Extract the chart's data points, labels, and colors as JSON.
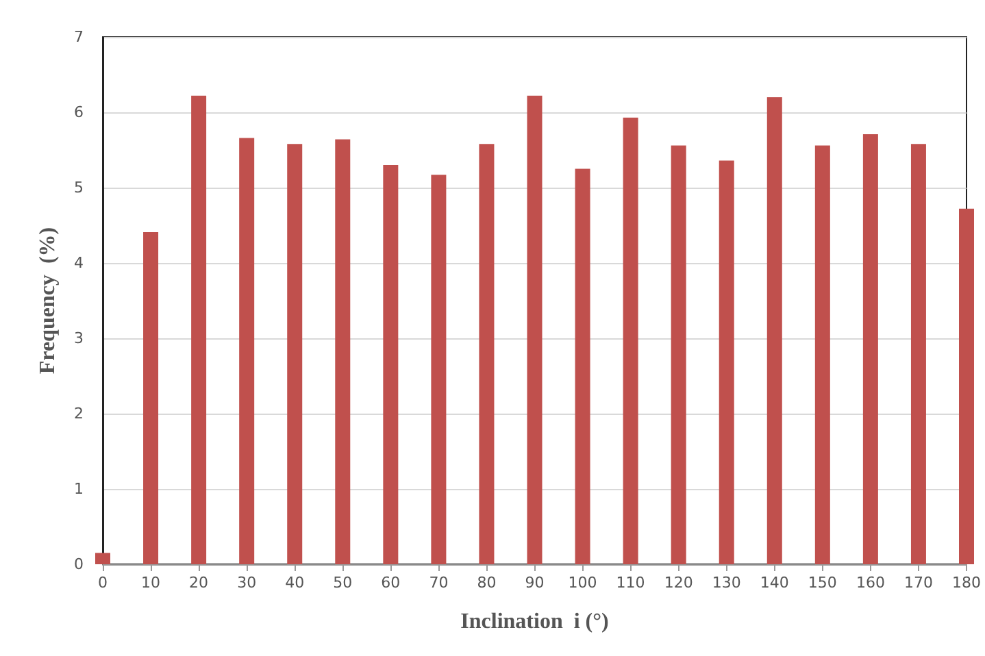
{
  "chart_data": {
    "type": "bar",
    "xlabel": "Inclination  i (°)",
    "ylabel": "Frequency  (%)",
    "x": [
      0,
      10,
      20,
      30,
      40,
      50,
      60,
      70,
      80,
      90,
      100,
      110,
      120,
      130,
      140,
      150,
      160,
      170,
      180
    ],
    "series": [
      {
        "color": "#c0504d",
        "values": [
          0.15,
          4.41,
          6.22,
          5.66,
          5.58,
          5.64,
          5.3,
          5.17,
          5.58,
          6.22,
          5.25,
          5.93,
          5.56,
          5.36,
          6.2,
          5.56,
          5.71,
          5.58,
          4.72
        ]
      }
    ],
    "xlim": [
      0,
      180
    ],
    "xticks": [
      0,
      10,
      20,
      30,
      40,
      50,
      60,
      70,
      80,
      90,
      100,
      110,
      120,
      130,
      140,
      150,
      160,
      170,
      180
    ],
    "ylim": [
      0,
      7
    ],
    "yticks": [
      0,
      1,
      2,
      3,
      4,
      5,
      6,
      7
    ],
    "grid": "y"
  }
}
